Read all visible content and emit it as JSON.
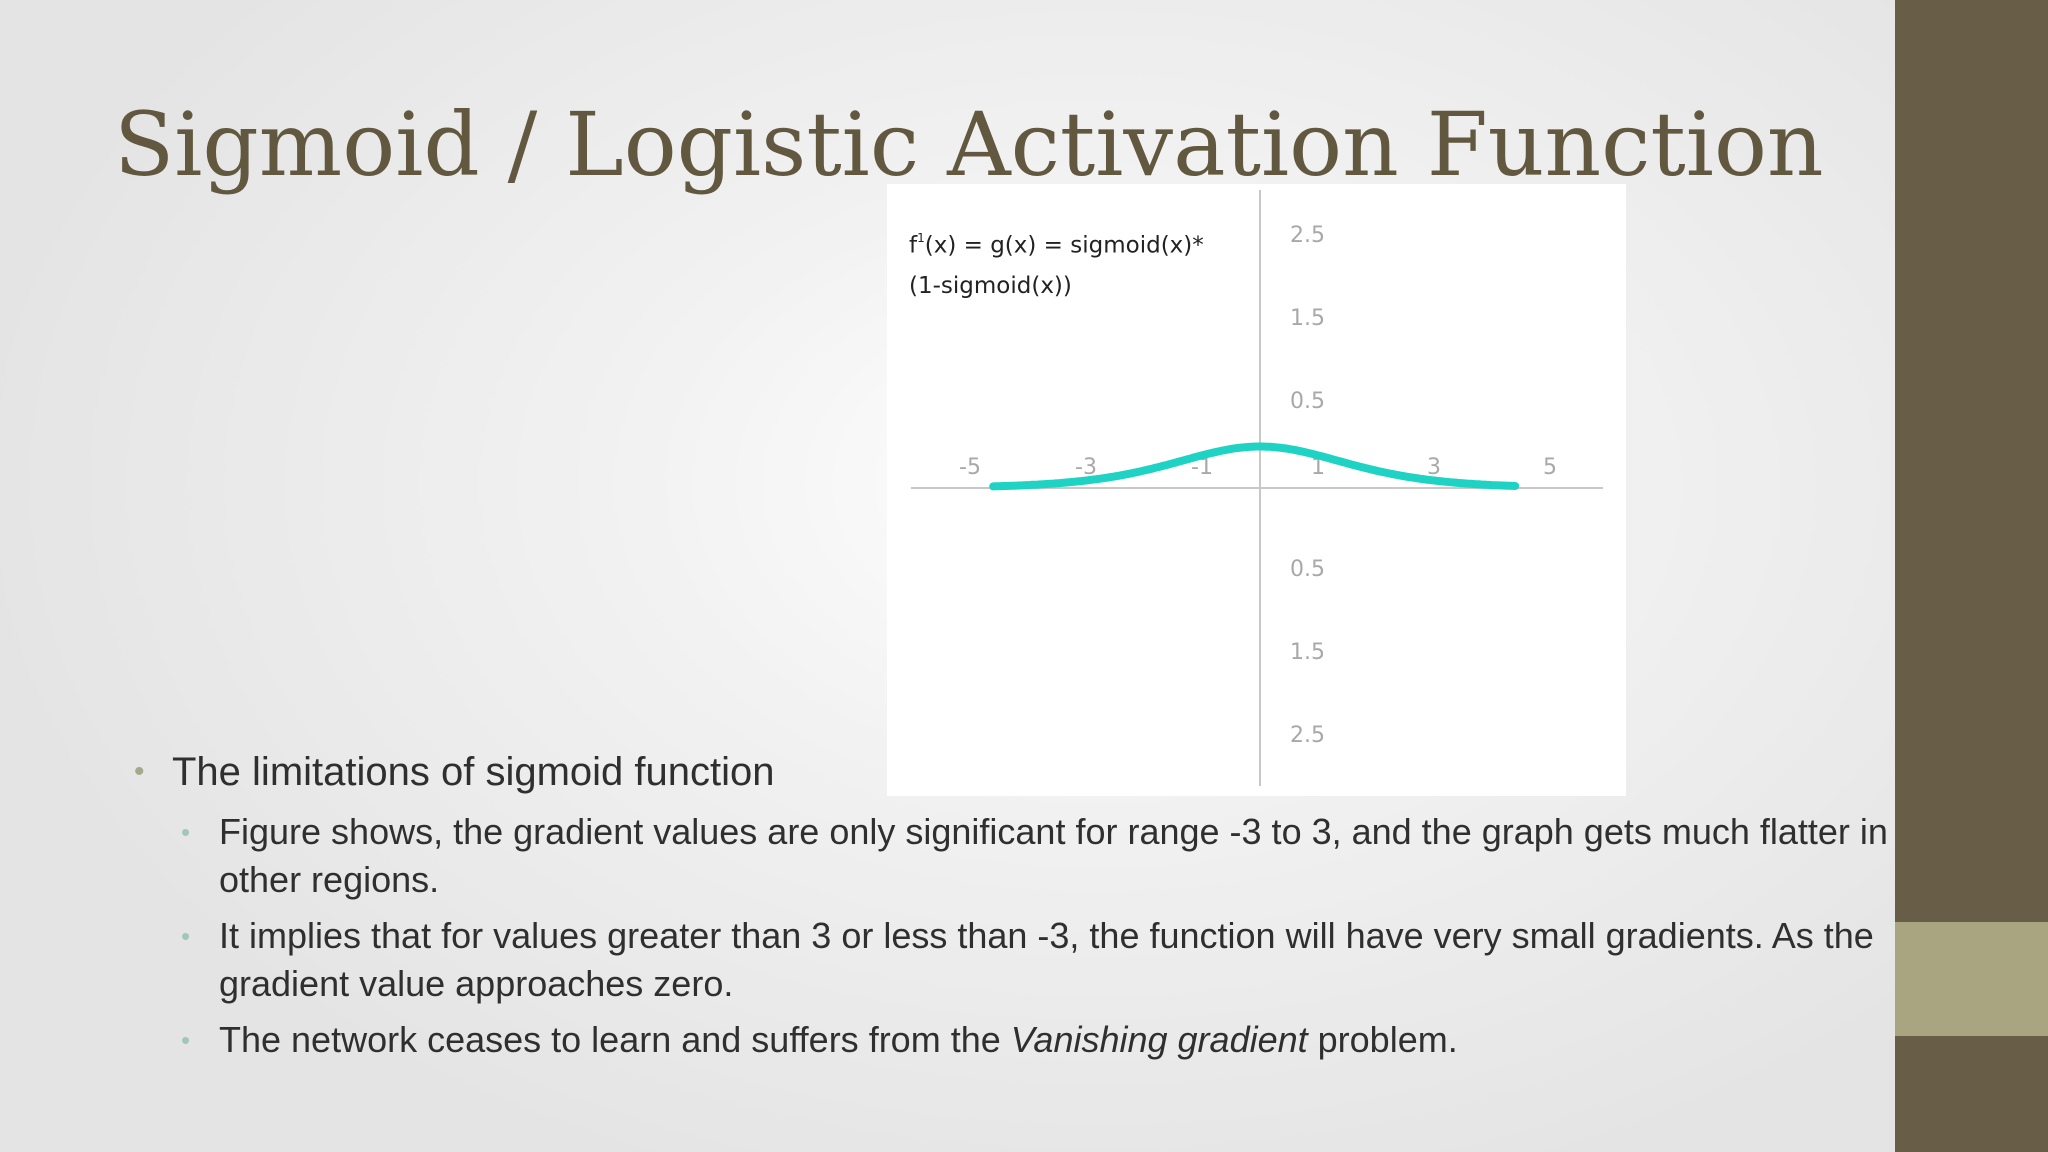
{
  "slide": {
    "title": "Sigmoid / Logistic Activation Function",
    "colors": {
      "title": "#61583f",
      "side_bar": "#685e48",
      "side_accent": "#a9a580",
      "curve": "#1ed3c3",
      "axis": "#c8c8c8",
      "tick_label": "#a8a8a8"
    }
  },
  "chart_data": {
    "type": "line",
    "formula_line1": "f",
    "formula_sup": "1",
    "formula_line2": "(x) = g(x) = sigmoid(x)*",
    "formula_line3": "(1-sigmoid(x))",
    "x_ticks": [
      "-5",
      "-3",
      "-1",
      "1",
      "3",
      "5"
    ],
    "y_ticks_top": [
      "2.5",
      "1.5",
      "0.5"
    ],
    "y_ticks_bottom": [
      "0.5",
      "1.5",
      "2.5"
    ],
    "xlim": [
      -6,
      6
    ],
    "ylim": [
      -3,
      3
    ],
    "series": [
      {
        "function": "sigmoid_derivative",
        "x": [
          -6,
          -5,
          -4,
          -3,
          -2,
          -1,
          0,
          1,
          2,
          3,
          4,
          5,
          6
        ],
        "y": [
          0.0025,
          0.0066,
          0.0177,
          0.0452,
          0.105,
          0.1966,
          0.25,
          0.1966,
          0.105,
          0.0452,
          0.0177,
          0.0066,
          0.0025
        ]
      }
    ]
  },
  "bullets": {
    "main": "The limitations of sigmoid function",
    "sub1": "Figure shows, the gradient values are only significant for range -3 to 3, and the graph gets much flatter in other regions.",
    "sub2": "It implies that for values greater than 3 or less than -3, the function will have very small gradients. As the gradient value approaches zero.",
    "sub3_pre": "The network ceases to learn and suffers from the ",
    "sub3_em": "Vanishing gradient",
    "sub3_post": " problem."
  }
}
